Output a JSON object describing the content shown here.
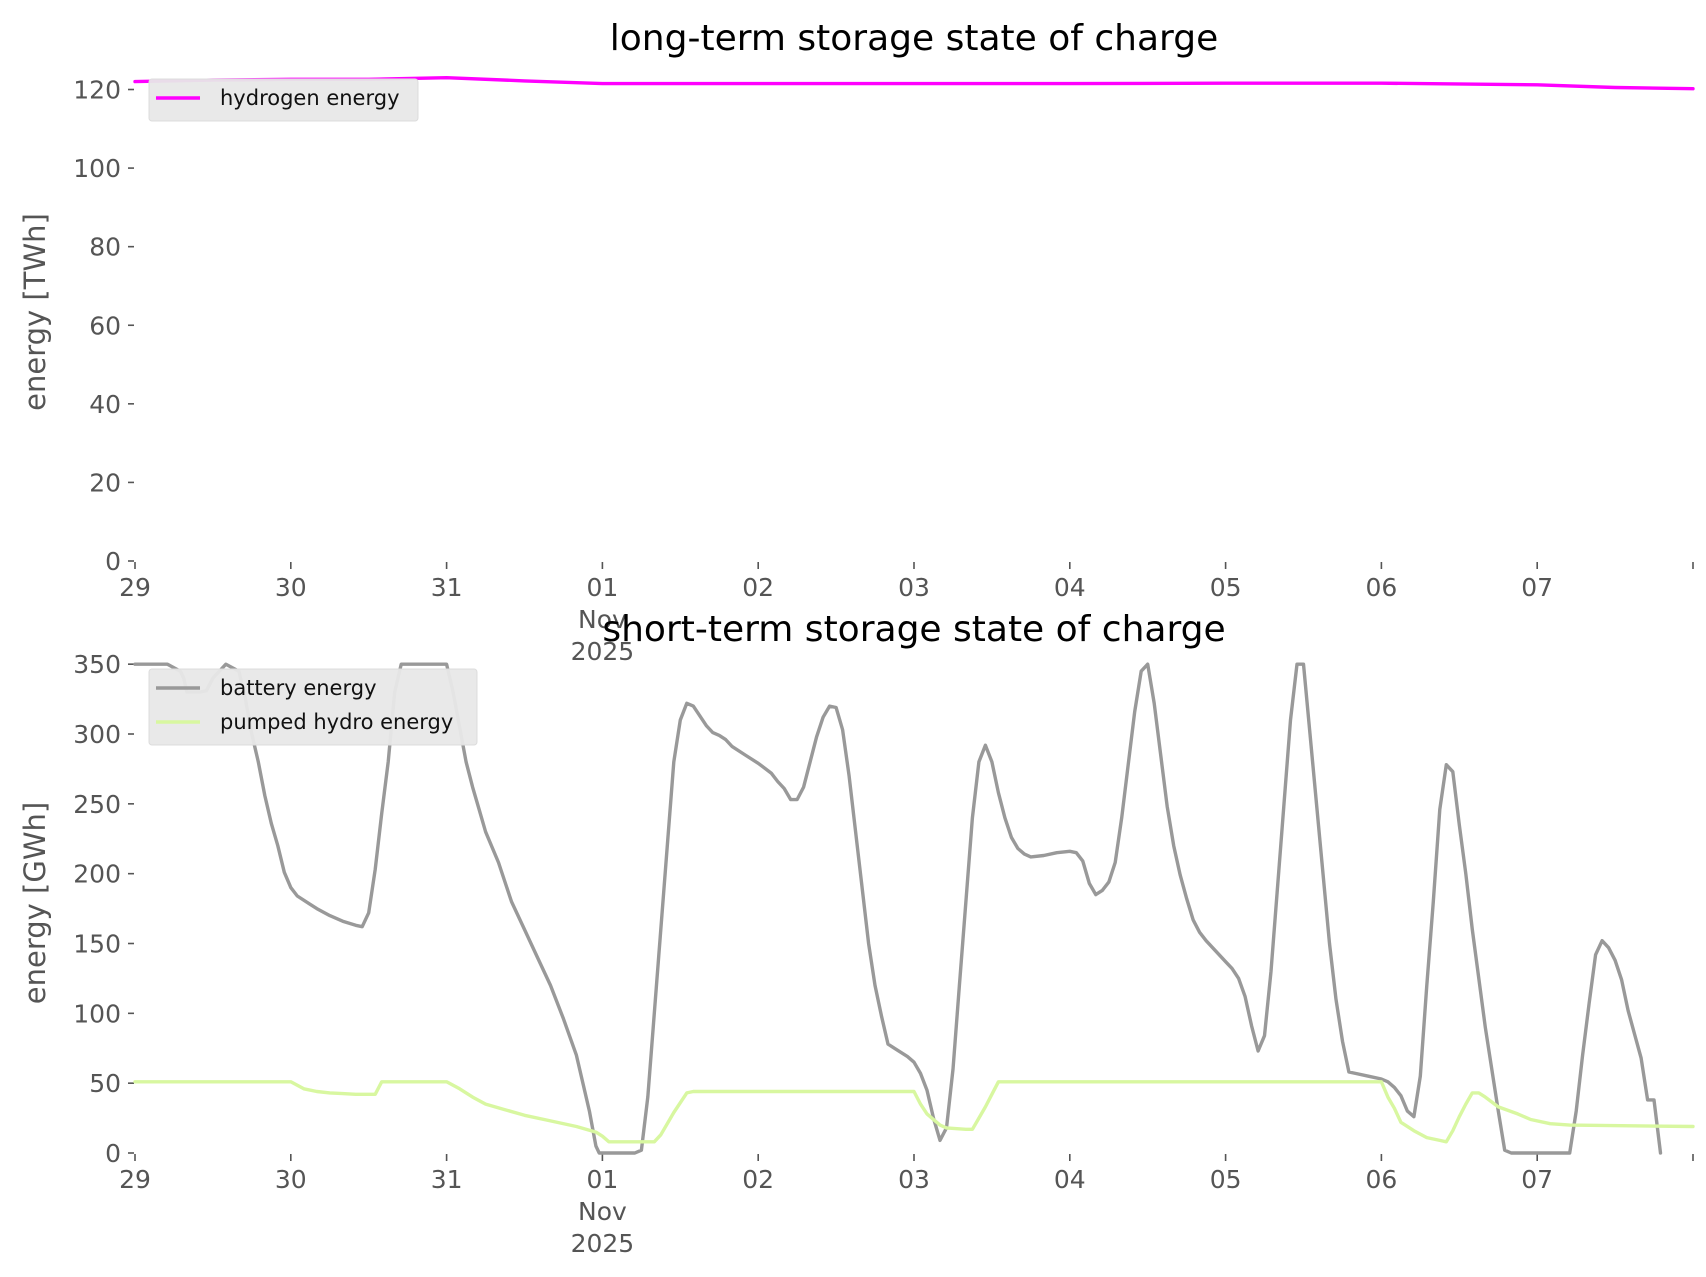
{
  "chart_data": [
    {
      "type": "line",
      "title": "long-term storage state of charge",
      "ylabel": "energy [TWh]",
      "xlabel": "",
      "ylim": [
        0,
        127
      ],
      "xlim": [
        0,
        240
      ],
      "yticks": [
        0,
        20,
        40,
        60,
        80,
        100,
        120
      ],
      "xticks": [
        {
          "label": "29",
          "x": 0
        },
        {
          "label": "30",
          "x": 24
        },
        {
          "label": "31",
          "x": 48
        },
        {
          "label": "01\nNov\n2025",
          "x": 72
        },
        {
          "label": "02",
          "x": 96
        },
        {
          "label": "03",
          "x": 120
        },
        {
          "label": "04",
          "x": 144
        },
        {
          "label": "05",
          "x": 168
        },
        {
          "label": "06",
          "x": 192
        },
        {
          "label": "07",
          "x": 216
        }
      ],
      "legend_position": "top-left",
      "series": [
        {
          "name": "hydrogen energy",
          "color": "#ff00ff",
          "points": [
            [
              0,
              122.0
            ],
            [
              12,
              122.4
            ],
            [
              24,
              122.6
            ],
            [
              36,
              122.6
            ],
            [
              48,
              123.0
            ],
            [
              60,
              122.2
            ],
            [
              72,
              121.5
            ],
            [
              96,
              121.5
            ],
            [
              120,
              121.5
            ],
            [
              144,
              121.5
            ],
            [
              168,
              121.6
            ],
            [
              192,
              121.6
            ],
            [
              216,
              121.2
            ],
            [
              228,
              120.5
            ],
            [
              240,
              120.2
            ]
          ]
        }
      ]
    },
    {
      "type": "line",
      "title": "short-term storage state of charge",
      "ylabel": "energy [GWh]",
      "xlabel": "",
      "ylim": [
        0,
        358
      ],
      "xlim": [
        0,
        240
      ],
      "yticks": [
        0,
        50,
        100,
        150,
        200,
        250,
        300,
        350
      ],
      "xticks": [
        {
          "label": "29",
          "x": 0
        },
        {
          "label": "30",
          "x": 24
        },
        {
          "label": "31",
          "x": 48
        },
        {
          "label": "01\nNov\n2025",
          "x": 72
        },
        {
          "label": "02",
          "x": 96
        },
        {
          "label": "03",
          "x": 120
        },
        {
          "label": "04",
          "x": 144
        },
        {
          "label": "05",
          "x": 168
        },
        {
          "label": "06",
          "x": 192
        },
        {
          "label": "07",
          "x": 216
        }
      ],
      "legend_position": "top-left",
      "series": [
        {
          "name": "battery energy",
          "color": "#999999",
          "points": [
            [
              0,
              350
            ],
            [
              5,
              350
            ],
            [
              7,
              345
            ],
            [
              7.5,
              340
            ],
            [
              8,
              330
            ],
            [
              10,
              330
            ],
            [
              11,
              331
            ],
            [
              12,
              340
            ],
            [
              14,
              350
            ],
            [
              16,
              345
            ],
            [
              17,
              325
            ],
            [
              18,
              300
            ],
            [
              19,
              280
            ],
            [
              20,
              256
            ],
            [
              21,
              236
            ],
            [
              22,
              220
            ],
            [
              23,
              201
            ],
            [
              24,
              190
            ],
            [
              25,
              184
            ],
            [
              27,
              178
            ],
            [
              28,
              175
            ],
            [
              30,
              170
            ],
            [
              32,
              166
            ],
            [
              34,
              163
            ],
            [
              35,
              162
            ],
            [
              36,
              172
            ],
            [
              37,
              203
            ],
            [
              38,
              243
            ],
            [
              39,
              280
            ],
            [
              40,
              330
            ],
            [
              41,
              350
            ],
            [
              48,
              350
            ],
            [
              49,
              330
            ],
            [
              50,
              305
            ],
            [
              51,
              280
            ],
            [
              52,
              262
            ],
            [
              53,
              246
            ],
            [
              54,
              230
            ],
            [
              56,
              208
            ],
            [
              58,
              180
            ],
            [
              60,
              160
            ],
            [
              62,
              140
            ],
            [
              64,
              120
            ],
            [
              66,
              96
            ],
            [
              68,
              70
            ],
            [
              70,
              30
            ],
            [
              71,
              5
            ],
            [
              71.5,
              0
            ],
            [
              77,
              0
            ],
            [
              78,
              2
            ],
            [
              79,
              40
            ],
            [
              80,
              100
            ],
            [
              81,
              160
            ],
            [
              82,
              220
            ],
            [
              83,
              280
            ],
            [
              84,
              310
            ],
            [
              85,
              322
            ],
            [
              86,
              320
            ],
            [
              87,
              313
            ],
            [
              88,
              306
            ],
            [
              89,
              301
            ],
            [
              90,
              299
            ],
            [
              91,
              296
            ],
            [
              92,
              291
            ],
            [
              94,
              285
            ],
            [
              96,
              279
            ],
            [
              98,
              272
            ],
            [
              99,
              266
            ],
            [
              100,
              261
            ],
            [
              101,
              253
            ],
            [
              102,
              253
            ],
            [
              103,
              262
            ],
            [
              104,
              280
            ],
            [
              105,
              298
            ],
            [
              106,
              312
            ],
            [
              107,
              320
            ],
            [
              108,
              319
            ],
            [
              109,
              303
            ],
            [
              110,
              270
            ],
            [
              111,
              230
            ],
            [
              112,
              190
            ],
            [
              113,
              150
            ],
            [
              114,
              120
            ],
            [
              115,
              98
            ],
            [
              116,
              78
            ],
            [
              117,
              75
            ],
            [
              118,
              72
            ],
            [
              119,
              69
            ],
            [
              120,
              65
            ],
            [
              121,
              57
            ],
            [
              122,
              45
            ],
            [
              123,
              25
            ],
            [
              124,
              9
            ],
            [
              125,
              18
            ],
            [
              126,
              60
            ],
            [
              127,
              120
            ],
            [
              128,
              180
            ],
            [
              129,
              240
            ],
            [
              130,
              280
            ],
            [
              131,
              292
            ],
            [
              132,
              280
            ],
            [
              133,
              258
            ],
            [
              134,
              240
            ],
            [
              135,
              226
            ],
            [
              136,
              218
            ],
            [
              137,
              214
            ],
            [
              138,
              212
            ],
            [
              140,
              213
            ],
            [
              142,
              215
            ],
            [
              144,
              216
            ],
            [
              145,
              215
            ],
            [
              146,
              209
            ],
            [
              147,
              193
            ],
            [
              148,
              185
            ],
            [
              149,
              188
            ],
            [
              150,
              194
            ],
            [
              151,
              208
            ],
            [
              152,
              240
            ],
            [
              153,
              278
            ],
            [
              154,
              316
            ],
            [
              155,
              345
            ],
            [
              156,
              350
            ],
            [
              157,
              322
            ],
            [
              158,
              285
            ],
            [
              159,
              248
            ],
            [
              160,
              220
            ],
            [
              161,
              199
            ],
            [
              162,
              182
            ],
            [
              163,
              167
            ],
            [
              164,
              158
            ],
            [
              165,
              152
            ],
            [
              166,
              147
            ],
            [
              168,
              137
            ],
            [
              169,
              132
            ],
            [
              170,
              125
            ],
            [
              171,
              112
            ],
            [
              172,
              91
            ],
            [
              173,
              73
            ],
            [
              174,
              84
            ],
            [
              175,
              130
            ],
            [
              176,
              190
            ],
            [
              177,
              250
            ],
            [
              178,
              310
            ],
            [
              179,
              350
            ],
            [
              180,
              350
            ],
            [
              181,
              300
            ],
            [
              182,
              250
            ],
            [
              183,
              200
            ],
            [
              184,
              150
            ],
            [
              185,
              110
            ],
            [
              186,
              80
            ],
            [
              187,
              58
            ],
            [
              188,
              57
            ],
            [
              190,
              55
            ],
            [
              192,
              53
            ],
            [
              193,
              51
            ],
            [
              194,
              47
            ],
            [
              195,
              41
            ],
            [
              196,
              30
            ],
            [
              197,
              26
            ],
            [
              198,
              55
            ],
            [
              199,
              120
            ],
            [
              200,
              180
            ],
            [
              201,
              246
            ],
            [
              202,
              278
            ],
            [
              203,
              273
            ],
            [
              204,
              235
            ],
            [
              205,
              200
            ],
            [
              206,
              160
            ],
            [
              207,
              125
            ],
            [
              208,
              90
            ],
            [
              209,
              60
            ],
            [
              210,
              30
            ],
            [
              211,
              2
            ],
            [
              212,
              0
            ],
            [
              221,
              0
            ],
            [
              222,
              30
            ],
            [
              223,
              70
            ],
            [
              224,
              107
            ],
            [
              225,
              142
            ],
            [
              226,
              152
            ],
            [
              227,
              147
            ],
            [
              228,
              138
            ],
            [
              229,
              124
            ],
            [
              230,
              102
            ],
            [
              231,
              85
            ],
            [
              232,
              68
            ],
            [
              233,
              38
            ],
            [
              234,
              38
            ],
            [
              235,
              0
            ]
          ]
        },
        {
          "name": "pumped hydro energy",
          "color": "#d8f7a0",
          "points": [
            [
              0,
              51
            ],
            [
              24,
              51
            ],
            [
              26,
              46
            ],
            [
              28,
              44
            ],
            [
              30,
              43
            ],
            [
              32,
              42.5
            ],
            [
              34,
              42
            ],
            [
              37,
              42
            ],
            [
              38,
              51
            ],
            [
              48,
              51
            ],
            [
              50,
              46
            ],
            [
              52,
              40
            ],
            [
              54,
              35
            ],
            [
              57,
              31
            ],
            [
              60,
              27
            ],
            [
              64,
              23
            ],
            [
              68,
              19
            ],
            [
              71,
              15
            ],
            [
              72,
              12
            ],
            [
              73,
              8
            ],
            [
              80,
              8
            ],
            [
              81,
              13
            ],
            [
              83,
              29
            ],
            [
              85,
              43
            ],
            [
              86,
              44
            ],
            [
              120,
              44
            ],
            [
              121,
              35
            ],
            [
              122,
              28
            ],
            [
              124,
              20
            ],
            [
              125,
              18
            ],
            [
              128,
              17
            ],
            [
              129,
              17
            ],
            [
              130,
              25
            ],
            [
              131,
              33
            ],
            [
              132,
              42
            ],
            [
              133,
              51
            ],
            [
              192,
              51
            ],
            [
              193,
              40
            ],
            [
              194,
              32
            ],
            [
              195,
              22
            ],
            [
              197,
              16
            ],
            [
              199,
              11
            ],
            [
              201,
              9
            ],
            [
              202,
              8
            ],
            [
              203,
              16
            ],
            [
              204,
              26
            ],
            [
              205,
              35
            ],
            [
              206,
              43
            ],
            [
              207,
              43
            ],
            [
              208,
              40
            ],
            [
              210,
              33
            ],
            [
              213,
              28
            ],
            [
              215,
              24
            ],
            [
              218,
              21
            ],
            [
              221,
              20
            ],
            [
              240,
              19
            ]
          ]
        }
      ]
    }
  ]
}
